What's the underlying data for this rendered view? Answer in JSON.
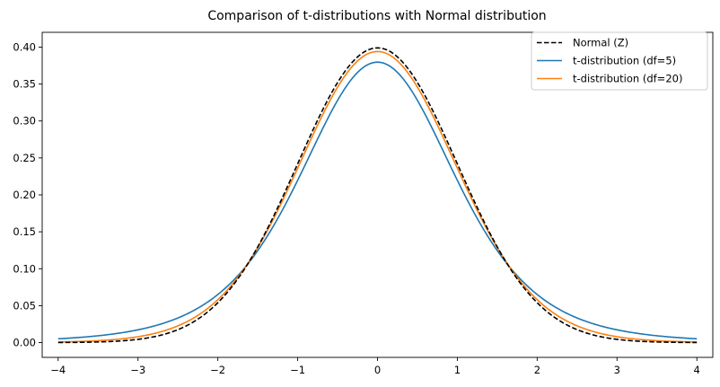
{
  "chart_data": {
    "type": "line",
    "title": "Comparison of t-distributions with Normal distribution",
    "xlabel": "",
    "ylabel": "",
    "xlim": [
      -4.2,
      4.2
    ],
    "ylim": [
      -0.02,
      0.42
    ],
    "xticks": [
      -4,
      -3,
      -2,
      -1,
      0,
      1,
      2,
      3,
      4
    ],
    "xtick_labels": [
      "−4",
      "−3",
      "−2",
      "−1",
      "0",
      "1",
      "2",
      "3",
      "4"
    ],
    "yticks": [
      0.0,
      0.05,
      0.1,
      0.15,
      0.2,
      0.25,
      0.3,
      0.35,
      0.4
    ],
    "ytick_labels": [
      "0.00",
      "0.05",
      "0.10",
      "0.15",
      "0.20",
      "0.25",
      "0.30",
      "0.35",
      "0.40"
    ],
    "grid": false,
    "legend_position": "top-right",
    "x": [
      -4,
      -3.5,
      -3,
      -2.5,
      -2,
      -1.75,
      -1.5,
      -1.25,
      -1,
      -0.75,
      -0.5,
      -0.25,
      0,
      0.25,
      0.5,
      0.75,
      1,
      1.25,
      1.5,
      1.75,
      2,
      2.5,
      3,
      3.5,
      4
    ],
    "series": [
      {
        "name": "Normal (Z)",
        "color": "#000000",
        "style": "dashed",
        "values": [
          0.0001,
          0.0009,
          0.0044,
          0.0175,
          0.054,
          0.0863,
          0.1295,
          0.1826,
          0.242,
          0.3011,
          0.3521,
          0.3867,
          0.3989,
          0.3867,
          0.3521,
          0.3011,
          0.242,
          0.1826,
          0.1295,
          0.0863,
          0.054,
          0.0175,
          0.0044,
          0.0009,
          0.0001
        ]
      },
      {
        "name": "t-distribution (df=5)",
        "color": "#1f77b4",
        "style": "solid",
        "values": [
          0.0051,
          0.0087,
          0.0173,
          0.0361,
          0.0651,
          0.0844,
          0.1108,
          0.1458,
          0.2197,
          0.2694,
          0.3279,
          0.3653,
          0.3796,
          0.3653,
          0.3279,
          0.2694,
          0.2197,
          0.1458,
          0.1108,
          0.0844,
          0.0651,
          0.0361,
          0.0173,
          0.0087,
          0.0051
        ]
      },
      {
        "name": "t-distribution (df=20)",
        "color": "#ff7f0e",
        "style": "solid",
        "values": [
          0.0005,
          0.0022,
          0.0079,
          0.0236,
          0.0604,
          0.0882,
          0.1275,
          0.1794,
          0.236,
          0.2948,
          0.3443,
          0.3783,
          0.394,
          0.3783,
          0.3443,
          0.2948,
          0.236,
          0.1794,
          0.1275,
          0.0882,
          0.0604,
          0.0236,
          0.0079,
          0.0022,
          0.0005
        ]
      }
    ]
  }
}
